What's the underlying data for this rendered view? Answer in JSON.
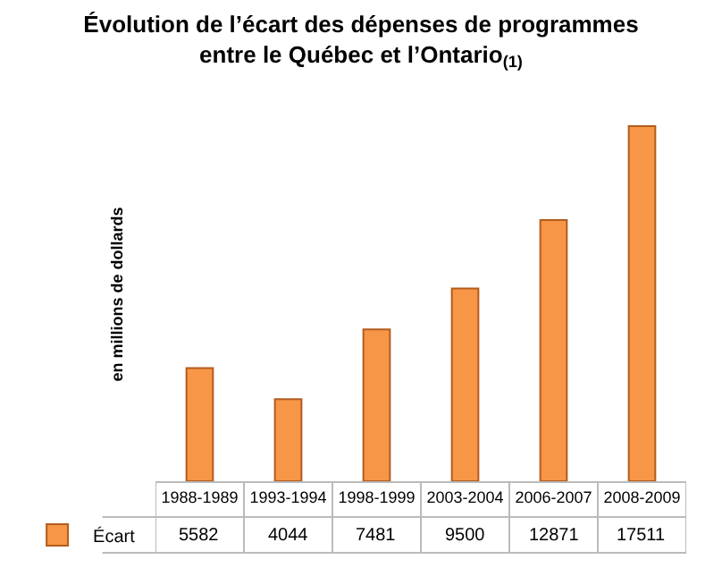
{
  "chart_data": {
    "type": "bar",
    "title": "Évolution de l’écart des dépenses de programmes entre le Québec et l’Ontario$_{(1)}$",
    "ylabel": "en millions de dollards",
    "categories": [
      "1988-1989",
      "1993-1994",
      "1998-1999",
      "2003-2004",
      "2006-2007",
      "2008-2009"
    ],
    "series": [
      {
        "name": "Écart",
        "color": "#f79646",
        "values": [
          5582,
          4044,
          7481,
          9500,
          12871,
          17511
        ]
      }
    ],
    "data_labels": true,
    "tick_labels": "x",
    "legend": "bottom left"
  }
}
